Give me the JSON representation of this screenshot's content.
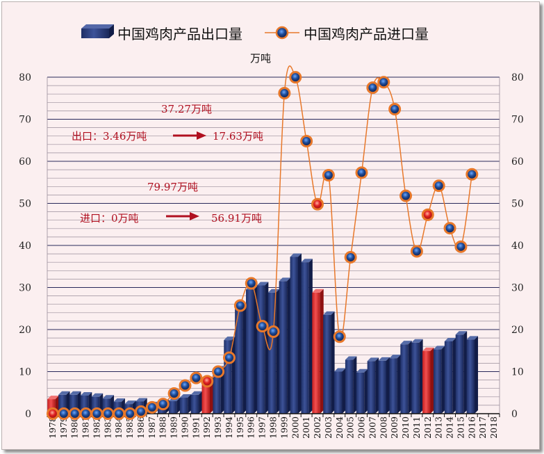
{
  "chart_data": {
    "type": "bar+line",
    "unit_label": "万吨",
    "legend": [
      "中国鸡肉产品出口量",
      "中国鸡肉产品进口量"
    ],
    "categories": [
      "1978",
      "1979",
      "1980",
      "1981",
      "1982",
      "1983",
      "1984",
      "1985",
      "1986",
      "1987",
      "1988",
      "1989",
      "1990",
      "1991",
      "1992",
      "1993",
      "1994",
      "1995",
      "1996",
      "1997",
      "1998",
      "1999",
      "2000",
      "2001",
      "2002",
      "2003",
      "2004",
      "2005",
      "2006",
      "2007",
      "2008",
      "2009",
      "2010",
      "2011",
      "2012",
      "2013",
      "2014",
      "2015",
      "2016",
      "2017",
      "2018"
    ],
    "series": [
      {
        "name": "中国鸡肉产品出口量",
        "kind": "bar",
        "values": [
          3.46,
          4.5,
          4.5,
          4.3,
          4.0,
          3.6,
          2.8,
          2.3,
          2.9,
          2.0,
          2.5,
          3.0,
          3.8,
          4.5,
          8.0,
          10.5,
          17.5,
          25.0,
          29.5,
          30.5,
          28.8,
          31.5,
          37.27,
          36.0,
          28.8,
          23.5,
          10.0,
          12.8,
          9.8,
          12.5,
          12.6,
          13.2,
          16.5,
          16.9,
          14.9,
          15.3,
          17.2,
          18.8,
          17.63,
          null,
          null
        ]
      },
      {
        "name": "中国鸡肉产品进口量",
        "kind": "line",
        "values": [
          0,
          0,
          0,
          0,
          0,
          0,
          0,
          0,
          0.5,
          1.5,
          2.3,
          4.8,
          6.7,
          8.5,
          7.7,
          10.0,
          13.3,
          25.7,
          31.0,
          20.8,
          19.5,
          76.2,
          79.97,
          64.8,
          49.8,
          56.7,
          18.3,
          37.2,
          57.3,
          77.5,
          78.8,
          72.4,
          51.8,
          38.6,
          47.3,
          54.2,
          44.1,
          39.7,
          56.91,
          null,
          null
        ]
      }
    ],
    "highlighted_categories": [
      "1978",
      "1992",
      "2002",
      "2012"
    ],
    "ylim": [
      0,
      80
    ],
    "yticks": [
      0,
      10,
      20,
      30,
      40,
      50,
      60,
      70,
      80
    ],
    "secondary_axis": true,
    "grid": true,
    "legend_position": "top",
    "colors": {
      "bar": "#2b3f7e",
      "bar_highlight": "#e53a3a",
      "line": "#e8782a",
      "marker": "#1a3d7c",
      "marker_highlight": "#d71818",
      "annotation": "#b01020"
    },
    "annotations": {
      "export_max": "37.27万吨",
      "export_from": "出口：3.46万吨",
      "export_to": "17.63万吨",
      "import_max": "79.97万吨",
      "import_from": "进口：0万吨",
      "import_to": "56.91万吨"
    }
  }
}
